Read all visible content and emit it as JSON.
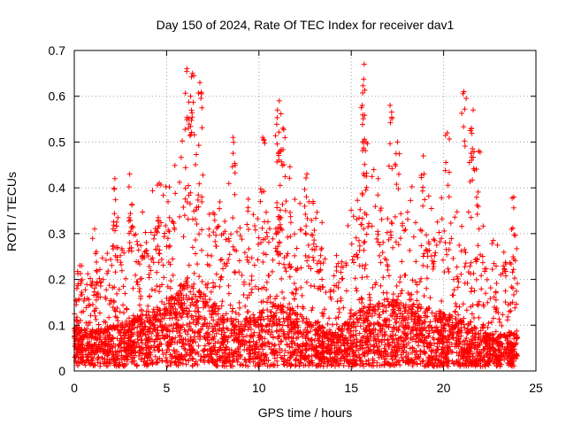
{
  "chart_data": {
    "type": "scatter",
    "title": "Day 150 of 2024, Rate Of TEC Index for receiver dav1",
    "xlabel": "GPS time / hours",
    "ylabel": "ROTI / TECUs",
    "xlim": [
      0,
      25
    ],
    "ylim": [
      0,
      0.7
    ],
    "xticks": [
      0,
      5,
      10,
      15,
      20,
      25
    ],
    "yticks": [
      0,
      0.1,
      0.2,
      0.3,
      0.4,
      0.5,
      0.6,
      0.7
    ],
    "xtick_labels": [
      "0",
      "5",
      "10",
      "15",
      "20",
      "25"
    ],
    "ytick_labels": [
      "0",
      "0.1",
      "0.2",
      "0.3",
      "0.4",
      "0.5",
      "0.6",
      "0.7"
    ],
    "grid": true,
    "marker": "+",
    "color": "#ff0000",
    "data_range_hours": [
      0,
      24
    ],
    "peaks": [
      {
        "x": 6.1,
        "y": 0.66
      },
      {
        "x": 6.4,
        "y": 0.65
      },
      {
        "x": 6.8,
        "y": 0.63
      },
      {
        "x": 6.3,
        "y": 0.6
      },
      {
        "x": 11.1,
        "y": 0.59
      },
      {
        "x": 11.0,
        "y": 0.57
      },
      {
        "x": 15.7,
        "y": 0.67
      },
      {
        "x": 15.6,
        "y": 0.58
      },
      {
        "x": 17.1,
        "y": 0.58
      },
      {
        "x": 21.1,
        "y": 0.61
      },
      {
        "x": 21.6,
        "y": 0.57
      },
      {
        "x": 21.5,
        "y": 0.53
      },
      {
        "x": 8.6,
        "y": 0.51
      },
      {
        "x": 10.2,
        "y": 0.51
      },
      {
        "x": 11.3,
        "y": 0.53
      },
      {
        "x": 15.8,
        "y": 0.5
      },
      {
        "x": 17.5,
        "y": 0.5
      },
      {
        "x": 18.9,
        "y": 0.47
      },
      {
        "x": 20.2,
        "y": 0.52
      },
      {
        "x": 21.9,
        "y": 0.48
      },
      {
        "x": 3.0,
        "y": 0.43
      },
      {
        "x": 2.2,
        "y": 0.42
      },
      {
        "x": 4.6,
        "y": 0.41
      },
      {
        "x": 0.3,
        "y": 0.23
      },
      {
        "x": 1.1,
        "y": 0.31
      },
      {
        "x": 12.6,
        "y": 0.43
      },
      {
        "x": 23.8,
        "y": 0.38
      }
    ],
    "envelope": [
      {
        "x": 0.0,
        "base": 0.09,
        "upper": 0.18
      },
      {
        "x": 1.0,
        "base": 0.08,
        "upper": 0.2
      },
      {
        "x": 2.0,
        "base": 0.09,
        "upper": 0.26
      },
      {
        "x": 3.0,
        "base": 0.1,
        "upper": 0.3
      },
      {
        "x": 4.0,
        "base": 0.12,
        "upper": 0.3
      },
      {
        "x": 5.0,
        "base": 0.14,
        "upper": 0.32
      },
      {
        "x": 6.0,
        "base": 0.2,
        "upper": 0.42
      },
      {
        "x": 7.0,
        "base": 0.16,
        "upper": 0.38
      },
      {
        "x": 8.0,
        "base": 0.12,
        "upper": 0.33
      },
      {
        "x": 9.0,
        "base": 0.1,
        "upper": 0.3
      },
      {
        "x": 10.0,
        "base": 0.12,
        "upper": 0.3
      },
      {
        "x": 11.0,
        "base": 0.14,
        "upper": 0.36
      },
      {
        "x": 12.0,
        "base": 0.12,
        "upper": 0.34
      },
      {
        "x": 13.0,
        "base": 0.1,
        "upper": 0.3
      },
      {
        "x": 14.0,
        "base": 0.07,
        "upper": 0.2
      },
      {
        "x": 15.0,
        "base": 0.11,
        "upper": 0.3
      },
      {
        "x": 16.0,
        "base": 0.14,
        "upper": 0.36
      },
      {
        "x": 17.0,
        "base": 0.15,
        "upper": 0.34
      },
      {
        "x": 18.0,
        "base": 0.14,
        "upper": 0.32
      },
      {
        "x": 19.0,
        "base": 0.13,
        "upper": 0.3
      },
      {
        "x": 20.0,
        "base": 0.12,
        "upper": 0.3
      },
      {
        "x": 21.0,
        "base": 0.1,
        "upper": 0.28
      },
      {
        "x": 22.0,
        "base": 0.08,
        "upper": 0.25
      },
      {
        "x": 23.0,
        "base": 0.07,
        "upper": 0.22
      },
      {
        "x": 24.0,
        "base": 0.08,
        "upper": 0.25
      }
    ]
  }
}
